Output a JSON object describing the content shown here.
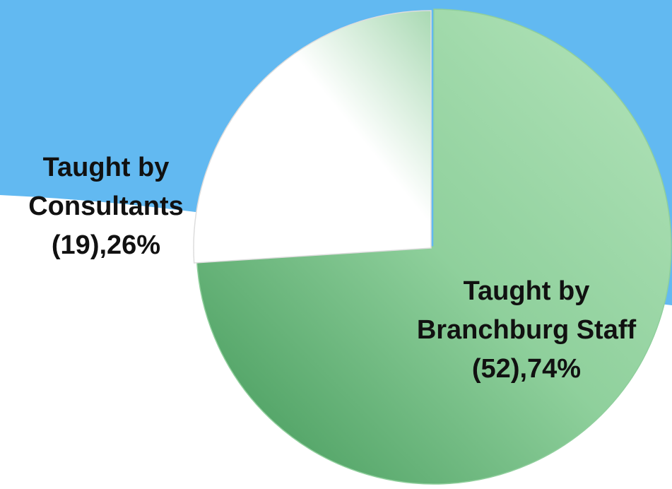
{
  "chart_data": {
    "type": "pie",
    "categories": [
      "Taught by Branchburg Staff (52),74%",
      "Taught by Consultants (19),26%"
    ],
    "values": [
      74,
      26
    ],
    "colors": [
      "#7cc68c",
      "#ffffff"
    ]
  }
}
